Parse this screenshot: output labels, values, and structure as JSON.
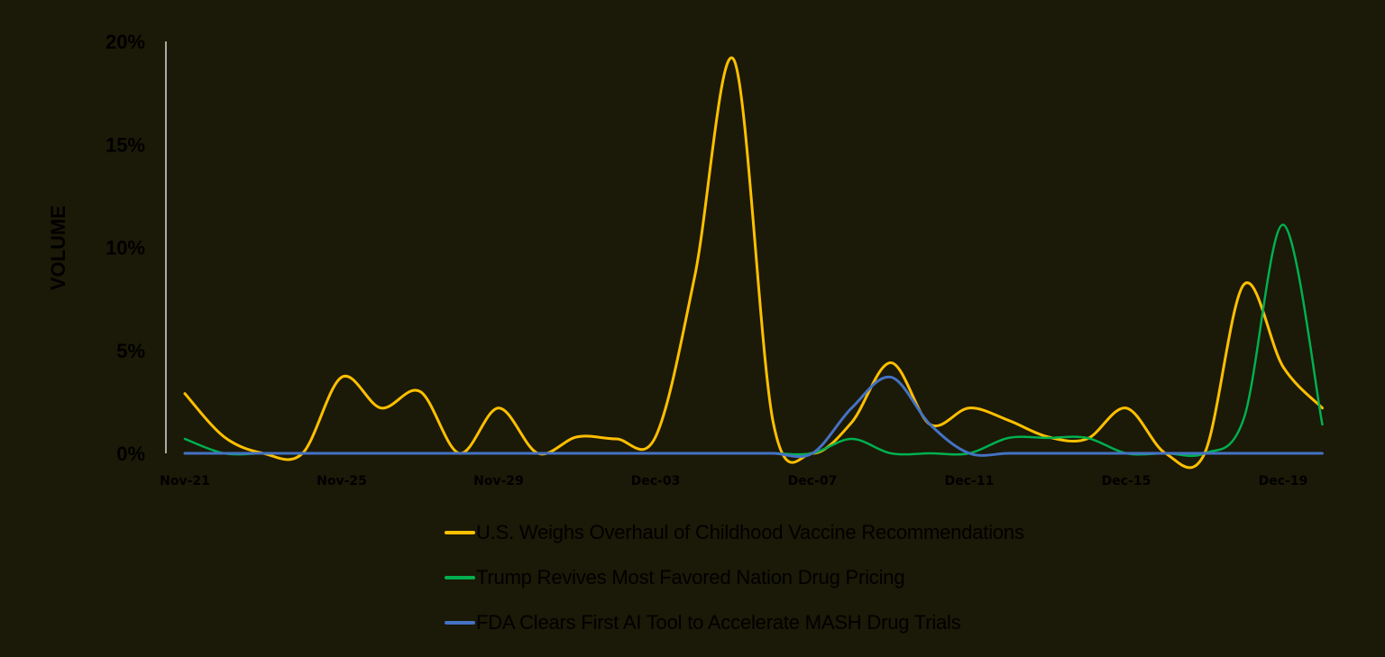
{
  "chart_data": {
    "type": "line",
    "title": "",
    "xlabel": "",
    "ylabel": "VOLUME",
    "ylim": [
      0,
      20
    ],
    "y_ticks": [
      "0%",
      "5%",
      "10%",
      "15%",
      "20%"
    ],
    "y_tick_values": [
      0,
      5,
      10,
      15,
      20
    ],
    "grid": false,
    "legend_position": "bottom",
    "smooth": true,
    "x": [
      "Nov-21",
      "Nov-22",
      "Nov-23",
      "Nov-24",
      "Nov-25",
      "Nov-26",
      "Nov-27",
      "Nov-28",
      "Nov-29",
      "Nov-30",
      "Dec-01",
      "Dec-02",
      "Dec-03",
      "Dec-04",
      "Dec-05",
      "Dec-06",
      "Dec-07",
      "Dec-08",
      "Dec-09",
      "Dec-10",
      "Dec-11",
      "Dec-12",
      "Dec-13",
      "Dec-14",
      "Dec-15",
      "Dec-16",
      "Dec-17",
      "Dec-18",
      "Dec-19",
      "Dec-20"
    ],
    "x_tick_labels": [
      "Nov-21",
      "Nov-25",
      "Nov-29",
      "Dec-03",
      "Dec-07",
      "Dec-11",
      "Dec-15",
      "Dec-19"
    ],
    "x_tick_indices": [
      0,
      4,
      8,
      12,
      16,
      20,
      24,
      28
    ],
    "series": [
      {
        "name": "U.S. Weighs Overhaul of Childhood Vaccine Recommendations",
        "color": "#ffc000",
        "values": [
          2.9,
          0.8,
          0,
          0,
          3.7,
          2.2,
          3.0,
          0,
          2.2,
          0,
          0.8,
          0.7,
          0.8,
          8.6,
          19.1,
          1.5,
          0,
          1.5,
          4.4,
          1.4,
          2.2,
          1.6,
          0.8,
          0.7,
          2.2,
          0,
          0,
          8.2,
          4.2,
          2.2
        ]
      },
      {
        "name": "Trump Revives Most Favored Nation Drug Pricing",
        "color": "#00b050",
        "values": [
          0.7,
          0,
          0,
          0,
          0,
          0,
          0,
          0,
          0,
          0,
          0,
          0,
          0,
          0,
          0,
          0,
          0,
          0.7,
          0,
          0,
          0,
          0.75,
          0.75,
          0.75,
          0,
          0,
          0,
          1.7,
          11.1,
          1.4
        ]
      },
      {
        "name": "FDA Clears First AI Tool to Accelerate MASH Drug Trials",
        "color": "#4472c4",
        "values": [
          0,
          0,
          0,
          0,
          0,
          0,
          0,
          0,
          0,
          0,
          0,
          0,
          0,
          0,
          0,
          0,
          0,
          2.2,
          3.7,
          1.4,
          0,
          0,
          0,
          0,
          0,
          0,
          0,
          0,
          0,
          0
        ]
      }
    ]
  },
  "style": {
    "background": "#1b1907",
    "axis_color": "#d9d9d9",
    "text_color": "#000000"
  },
  "legend": {
    "items": [
      {
        "label": "U.S. Weighs Overhaul of Childhood Vaccine Recommendations",
        "color": "#ffc000"
      },
      {
        "label": "Trump Revives Most Favored Nation Drug Pricing",
        "color": "#00b050"
      },
      {
        "label": "FDA Clears First AI Tool to Accelerate MASH Drug Trials",
        "color": "#4472c4"
      }
    ]
  }
}
